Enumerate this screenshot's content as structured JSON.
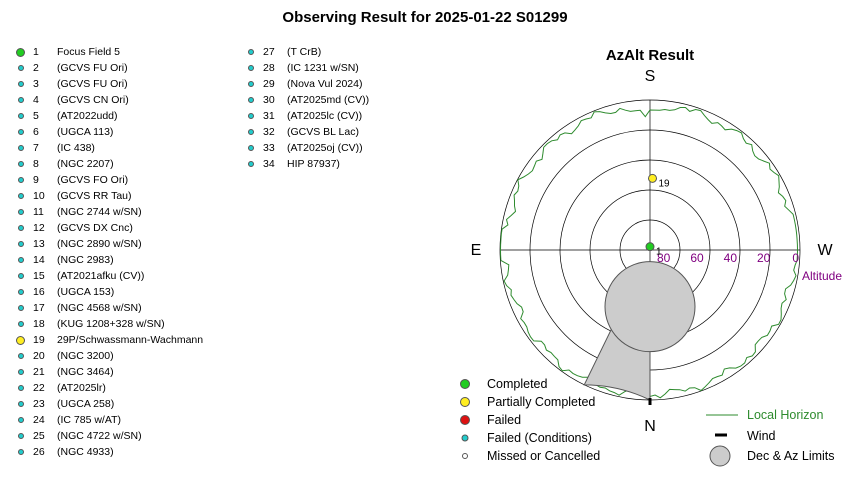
{
  "title": "Observing Result for 2025-01-22 S01299",
  "colors": {
    "completed": "#22cc22",
    "partial": "#ffee22",
    "failed": "#dd1111",
    "failed_conditions": "#22cccc",
    "missed": "#ffffff",
    "horizon": "#2e8b2e",
    "altitude_label": "#800080",
    "limits_fill": "#cccccc"
  },
  "targets": [
    {
      "num": "1",
      "name": "Focus Field 5",
      "status": "completed"
    },
    {
      "num": "2",
      "name": " (GCVS FU Ori)",
      "status": "failed_conditions"
    },
    {
      "num": "3",
      "name": " (GCVS FU Ori)",
      "status": "failed_conditions"
    },
    {
      "num": "4",
      "name": " (GCVS CN Ori)",
      "status": "failed_conditions"
    },
    {
      "num": "5",
      "name": " (AT2022udd)",
      "status": "failed_conditions"
    },
    {
      "num": "6",
      "name": " (UGCA 113)",
      "status": "failed_conditions"
    },
    {
      "num": "7",
      "name": " (IC 438)",
      "status": "failed_conditions"
    },
    {
      "num": "8",
      "name": " (NGC 2207)",
      "status": "failed_conditions"
    },
    {
      "num": "9",
      "name": " (GCVS FO Ori)",
      "status": "failed_conditions"
    },
    {
      "num": "10",
      "name": " (GCVS RR Tau)",
      "status": "failed_conditions"
    },
    {
      "num": "11",
      "name": " (NGC 2744 w/SN)",
      "status": "failed_conditions"
    },
    {
      "num": "12",
      "name": " (GCVS DX Cnc)",
      "status": "failed_conditions"
    },
    {
      "num": "13",
      "name": " (NGC 2890 w/SN)",
      "status": "failed_conditions"
    },
    {
      "num": "14",
      "name": " (NGC 2983)",
      "status": "failed_conditions"
    },
    {
      "num": "15",
      "name": " (AT2021afku (CV))",
      "status": "failed_conditions"
    },
    {
      "num": "16",
      "name": " (UGCA 153)",
      "status": "failed_conditions"
    },
    {
      "num": "17",
      "name": " (NGC 4568 w/SN)",
      "status": "failed_conditions"
    },
    {
      "num": "18",
      "name": " (KUG 1208+328 w/SN)",
      "status": "failed_conditions"
    },
    {
      "num": "19",
      "name": "29P/Schwassmann-Wachmann",
      "status": "partial"
    },
    {
      "num": "20",
      "name": " (NGC 3200)",
      "status": "failed_conditions"
    },
    {
      "num": "21",
      "name": " (NGC 3464)",
      "status": "failed_conditions"
    },
    {
      "num": "22",
      "name": " (AT2025lr)",
      "status": "failed_conditions"
    },
    {
      "num": "23",
      "name": " (UGCA 258)",
      "status": "failed_conditions"
    },
    {
      "num": "24",
      "name": " (IC 785 w/AT)",
      "status": "failed_conditions"
    },
    {
      "num": "25",
      "name": " (NGC 4722 w/SN)",
      "status": "failed_conditions"
    },
    {
      "num": "26",
      "name": " (NGC 4933)",
      "status": "failed_conditions"
    },
    {
      "num": "27",
      "name": " (T CrB)",
      "status": "failed_conditions"
    },
    {
      "num": "28",
      "name": " (IC 1231 w/SN)",
      "status": "failed_conditions"
    },
    {
      "num": "29",
      "name": " (Nova Vul 2024)",
      "status": "failed_conditions"
    },
    {
      "num": "30",
      "name": " (AT2025md (CV))",
      "status": "failed_conditions"
    },
    {
      "num": "31",
      "name": " (AT2025lc (CV))",
      "status": "failed_conditions"
    },
    {
      "num": "32",
      "name": " (GCVS BL Lac)",
      "status": "failed_conditions"
    },
    {
      "num": "33",
      "name": " (AT2025oj (CV))",
      "status": "failed_conditions"
    },
    {
      "num": "34",
      "name": " HIP 87937)",
      "status": "failed_conditions"
    }
  ],
  "azalt": {
    "title": "AzAlt Result",
    "directions": {
      "S": "S",
      "N": "N",
      "E": "E",
      "W": "W"
    },
    "altitude_ticks": [
      "80",
      "60",
      "40",
      "20",
      "0"
    ],
    "altitude_label": "Altitude",
    "points": [
      {
        "label": "1",
        "status": "completed",
        "az": 180,
        "alt": 88
      },
      {
        "label": "19",
        "status": "partial",
        "az": 182,
        "alt": 47
      }
    ],
    "wind_az": 0,
    "dec_limit_circle": {
      "az": 0,
      "alt": 56,
      "radius_deg": 27
    },
    "az_limit_wedge": {
      "az_from": 0,
      "az_to": 26,
      "alt_from": 50
    }
  },
  "legend": {
    "completed": "Completed",
    "partial": "Partially Completed",
    "failed": "Failed",
    "failed_conditions": "Failed (Conditions)",
    "missed": "Missed or Cancelled",
    "local_horizon": "Local Horizon",
    "wind": "Wind",
    "limits": "Dec & Az Limits"
  }
}
